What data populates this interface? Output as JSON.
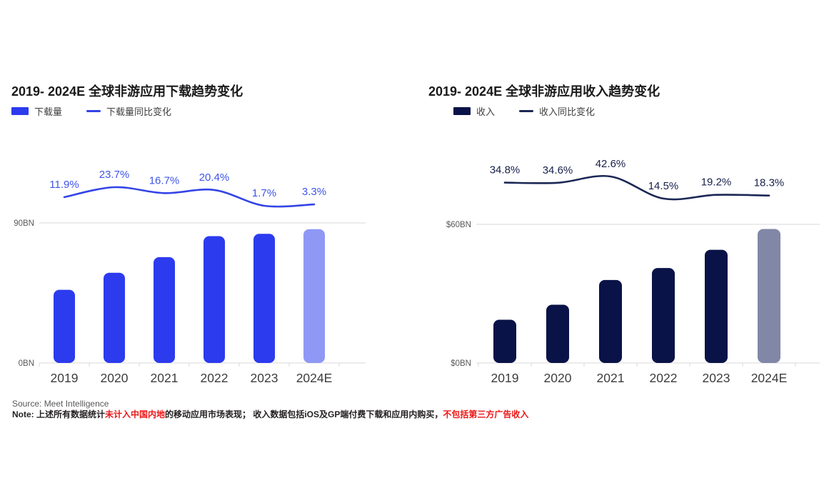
{
  "chart_data": [
    {
      "type": "bar+line",
      "title": "2019- 2024E 全球非游应用下载趋势变化",
      "categories": [
        "2019",
        "2020",
        "2021",
        "2022",
        "2023",
        "2024E"
      ],
      "series": [
        {
          "name": "下载量",
          "type": "bar",
          "unit": "BN",
          "values": [
            47,
            58,
            68,
            81.5,
            83,
            86
          ]
        },
        {
          "name": "下载量同比变化",
          "type": "line",
          "unit": "%",
          "values": [
            11.9,
            23.7,
            16.7,
            20.4,
            1.7,
            3.3
          ],
          "labels": [
            "11.9%",
            "23.7%",
            "16.7%",
            "20.4%",
            "1.7%",
            "3.3%"
          ]
        }
      ],
      "y_axis": {
        "max": 90,
        "top_label": "90BN",
        "bottom_label": "0BN"
      },
      "estimate_index": 5,
      "legend_position": "top-left",
      "grid": "top-and-baseline-only",
      "colors": {
        "bar": "#2c3bee",
        "bar_estimate": "#8f98f5",
        "line": "#3344e6",
        "label": "#3e55e8",
        "axis": "#d9d9d9"
      }
    },
    {
      "type": "bar+line",
      "title": "2019- 2024E 全球非游应用收入趋势变化",
      "categories": [
        "2019",
        "2020",
        "2021",
        "2022",
        "2023",
        "2024E"
      ],
      "series": [
        {
          "name": "收入",
          "type": "bar",
          "unit": "$BN",
          "values": [
            18.7,
            25.2,
            35.9,
            41.1,
            49,
            58
          ]
        },
        {
          "name": "收入同比变化",
          "type": "line",
          "unit": "%",
          "values": [
            34.8,
            34.6,
            42.6,
            14.5,
            19.2,
            18.3
          ],
          "labels": [
            "34.8%",
            "34.6%",
            "42.6%",
            "14.5%",
            "19.2%",
            "18.3%"
          ]
        }
      ],
      "y_axis": {
        "max": 60,
        "top_label": "$60BN",
        "bottom_label": "$0BN"
      },
      "estimate_index": 5,
      "legend_position": "top-left",
      "grid": "top-and-baseline-only",
      "colors": {
        "bar": "#0a1347",
        "bar_estimate": "#8187a6",
        "line": "#1b2755",
        "label": "#16204a",
        "axis": "#d9d9d9"
      }
    }
  ],
  "footer": {
    "source": "Source: Meet Intelligence",
    "note_parts": [
      {
        "text": "Note: 上述所有数据统计",
        "emphasis": "normal"
      },
      {
        "text": "未计入中国内地",
        "emphasis": "red"
      },
      {
        "text": "的移动应用市场表现； 收入数据包括iOS及GP端付费下载和应用内购买，",
        "emphasis": "normal"
      },
      {
        "text": "不包括第三方广告收入",
        "emphasis": "red"
      }
    ]
  }
}
